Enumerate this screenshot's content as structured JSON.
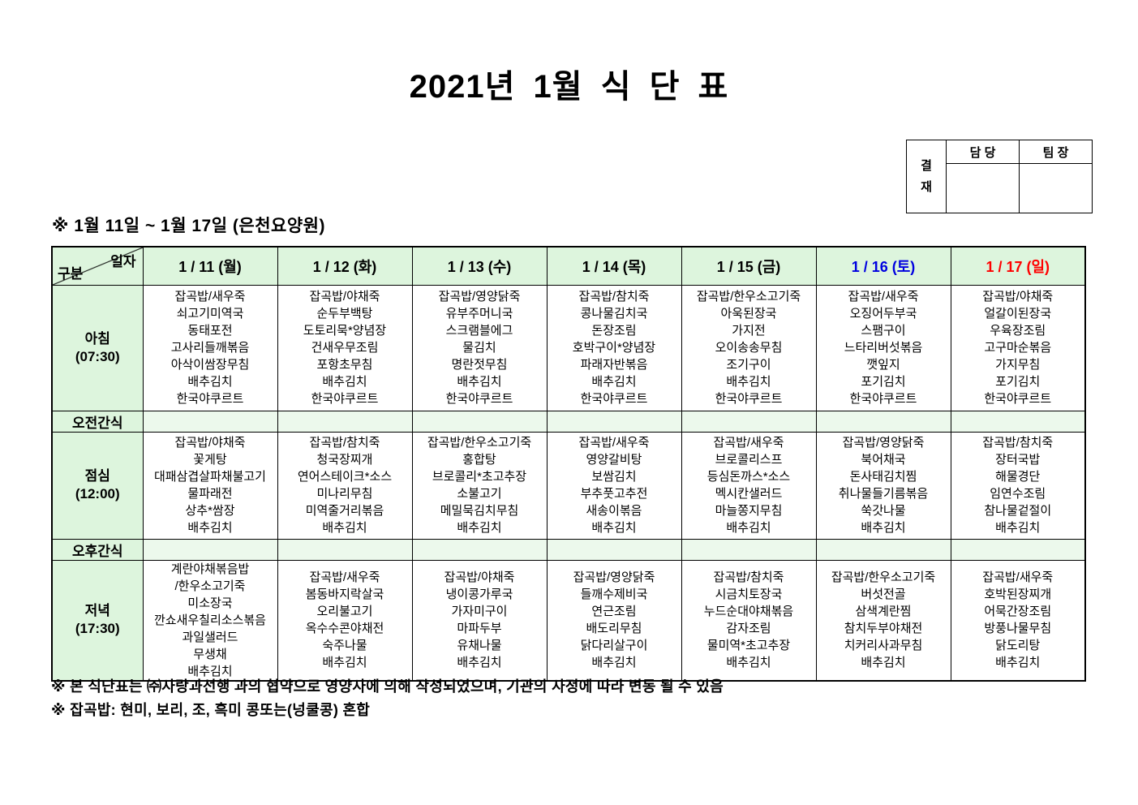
{
  "page": {
    "title": "2021년 1월 식 단 표",
    "subtitle": "※ 1월 11일 ~ 1월 17일 (은천요양원)",
    "notes": [
      "※ 본 식단표는 ㈜사랑과선행 과의 협약으로 영양사에 의해 작성되었으며, 기관의 사정에 따라 변동 될 수 있음",
      "※ 잡곡밥: 현미, 보리, 조, 흑미 콩또는(넝쿨콩) 혼합"
    ]
  },
  "approval": {
    "stamp_chars": [
      "결",
      "재"
    ],
    "columns": [
      "담 당",
      "팀 장"
    ]
  },
  "colors": {
    "header_green": "#ddf5dd",
    "snack_green": "#ecf9ec",
    "saturday_blue": "#0000e0",
    "sunday_red": "#ff0000",
    "weekday_black": "#000000"
  },
  "table": {
    "corner": {
      "top_right": "일자",
      "bottom_left": "구분"
    },
    "day_headers": [
      {
        "label": "1 / 11 (월)",
        "color": "#000000"
      },
      {
        "label": "1 / 12 (화)",
        "color": "#000000"
      },
      {
        "label": "1 / 13 (수)",
        "color": "#000000"
      },
      {
        "label": "1 / 14 (목)",
        "color": "#000000"
      },
      {
        "label": "1 / 15 (금)",
        "color": "#000000"
      },
      {
        "label": "1 / 16 (토)",
        "color": "#0000e0"
      },
      {
        "label": "1 / 17 (일)",
        "color": "#ff0000"
      }
    ],
    "rows": [
      {
        "type": "meal",
        "label": "아침",
        "time": "(07:30)",
        "cells": [
          [
            "잡곡밥/새우죽",
            "쇠고기미역국",
            "동태포전",
            "고사리들깨볶음",
            "아삭이쌈장무침",
            "배추김치",
            "한국야쿠르트"
          ],
          [
            "잡곡밥/야채죽",
            "순두부백탕",
            "도토리묵*양념장",
            "건새우무조림",
            "포항초무침",
            "배추김치",
            "한국야쿠르트"
          ],
          [
            "잡곡밥/영양닭죽",
            "유부주머니국",
            "스크램블에그",
            "물김치",
            "명란젓무침",
            "배추김치",
            "한국야쿠르트"
          ],
          [
            "잡곡밥/참치죽",
            "콩나물김치국",
            "돈장조림",
            "호박구이*양념장",
            "파래자반볶음",
            "배추김치",
            "한국야쿠르트"
          ],
          [
            "잡곡밥/한우소고기죽",
            "아욱된장국",
            "가지전",
            "오이송송무침",
            "조기구이",
            "배추김치",
            "한국야쿠르트"
          ],
          [
            "잡곡밥/새우죽",
            "오징어두부국",
            "스팸구이",
            "느타리버섯볶음",
            "깻잎지",
            "포기김치",
            "한국야쿠르트"
          ],
          [
            "잡곡밥/야채죽",
            "얼갈이된장국",
            "우육장조림",
            "고구마순볶음",
            "가지무침",
            "포기김치",
            "한국야쿠르트"
          ]
        ]
      },
      {
        "type": "snack",
        "label": "오전간식",
        "cells": [
          [],
          [],
          [],
          [],
          [],
          [],
          []
        ]
      },
      {
        "type": "meal",
        "label": "점심",
        "time": "(12:00)",
        "cells": [
          [
            "잡곡밥/야채죽",
            "꽃게탕",
            "대패삼겹살파채불고기",
            "물파래전",
            "상추*쌈장",
            "배추김치"
          ],
          [
            "잡곡밥/참치죽",
            "청국장찌개",
            "연어스테이크*소스",
            "미나리무침",
            "미역줄거리볶음",
            "배추김치"
          ],
          [
            "잡곡밥/한우소고기죽",
            "홍합탕",
            "브로콜리*초고추장",
            "소불고기",
            "메밀묵김치무침",
            "배추김치"
          ],
          [
            "잡곡밥/새우죽",
            "영양갈비탕",
            "보쌈김치",
            "부추풋고추전",
            "새송이볶음",
            "배추김치"
          ],
          [
            "잡곡밥/새우죽",
            "브로콜리스프",
            "등심돈까스*소스",
            "멕시칸샐러드",
            "마늘쫑지무침",
            "배추김치"
          ],
          [
            "잡곡밥/영양닭죽",
            "북어채국",
            "돈사태김치찜",
            "취나물들기름볶음",
            "쑥갓나물",
            "배추김치"
          ],
          [
            "잡곡밥/참치죽",
            "장터국밥",
            "해물경단",
            "임연수조림",
            "참나물겉절이",
            "배추김치"
          ]
        ]
      },
      {
        "type": "snack",
        "label": "오후간식",
        "cells": [
          [],
          [],
          [],
          [],
          [],
          [],
          []
        ]
      },
      {
        "type": "meal",
        "label": "저녁",
        "time": "(17:30)",
        "cells": [
          [
            "계란야채볶음밥",
            "/한우소고기죽",
            "미소장국",
            "깐쇼새우칠리소스볶음",
            "과일샐러드",
            "무생채",
            "배추김치"
          ],
          [
            "잡곡밥/새우죽",
            "봄동바지락살국",
            "오리불고기",
            "옥수수콘야채전",
            "숙주나물",
            "배추김치"
          ],
          [
            "잡곡밥/야채죽",
            "냉이콩가루국",
            "가자미구이",
            "마파두부",
            "유채나물",
            "배추김치"
          ],
          [
            "잡곡밥/영양닭죽",
            "들깨수제비국",
            "연근조림",
            "배도리무침",
            "닭다리살구이",
            "배추김치"
          ],
          [
            "잡곡밥/참치죽",
            "시금치토장국",
            "누드순대야채볶음",
            "감자조림",
            "물미역*초고추장",
            "배추김치"
          ],
          [
            "잡곡밥/한우소고기죽",
            "버섯전골",
            "삼색계란찜",
            "참치두부야채전",
            "치커리사과무침",
            "배추김치"
          ],
          [
            "잡곡밥/새우죽",
            "호박된장찌개",
            "어묵간장조림",
            "방풍나물무침",
            "닭도리탕",
            "배추김치"
          ]
        ]
      }
    ]
  }
}
